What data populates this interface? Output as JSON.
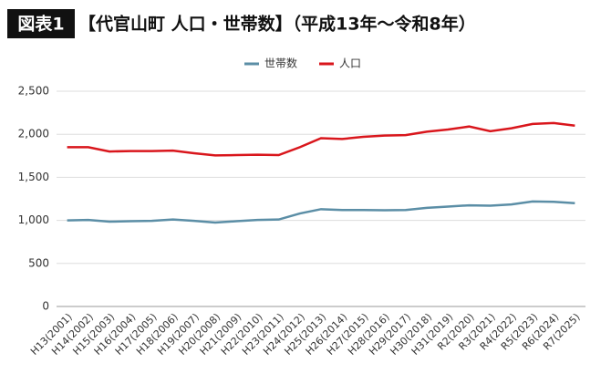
{
  "chart_data": {
    "type": "line",
    "badge": "図表1",
    "title": "【代官山町 人口・世帯数】（平成13年〜令和8年）",
    "categories": [
      "H13(2001)",
      "H14(2002)",
      "H15(2003)",
      "H16(2004)",
      "H17(2005)",
      "H18(2006)",
      "H19(2007)",
      "H20(2008)",
      "H21(2009)",
      "H22(2010)",
      "H23(2011)",
      "H24(2012)",
      "H25(2013)",
      "H26(2014)",
      "H27(2015)",
      "H28(2016)",
      "H29(2017)",
      "H30(2018)",
      "H31(2019)",
      "R2(2020)",
      "R3(2021)",
      "R4(2022)",
      "R5(2023)",
      "R6(2024)",
      "R7(2025)"
    ],
    "series": [
      {
        "name": "世帯数",
        "color": "#5b8ea6",
        "values": [
          1000,
          1005,
          985,
          990,
          995,
          1010,
          995,
          975,
          990,
          1005,
          1010,
          1080,
          1130,
          1120,
          1120,
          1118,
          1120,
          1145,
          1160,
          1175,
          1170,
          1185,
          1220,
          1215,
          1200
        ]
      },
      {
        "name": "人口",
        "color": "#d9161c",
        "values": [
          1850,
          1850,
          1800,
          1805,
          1805,
          1810,
          1780,
          1755,
          1758,
          1762,
          1758,
          1850,
          1955,
          1945,
          1970,
          1985,
          1990,
          2030,
          2055,
          2090,
          2035,
          2070,
          2120,
          2130,
          2100
        ]
      }
    ],
    "ylim": [
      0,
      2500
    ],
    "yticks": [
      0,
      500,
      {
        "value": 1000,
        "label": "1,000"
      },
      {
        "value": 1500,
        "label": "1,500"
      },
      {
        "value": 2000,
        "label": "2,000"
      },
      {
        "value": 2500,
        "label": "2,500"
      }
    ],
    "grid": true,
    "legend": "top"
  }
}
